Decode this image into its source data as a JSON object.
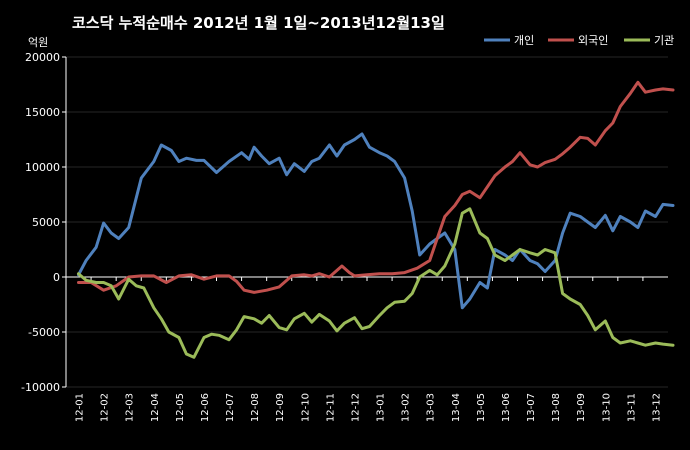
{
  "chart_data": {
    "type": "line",
    "title": "코스닥 누적순매수 2012년 1월 1일~2013년12월13일",
    "ylabel": "억원",
    "ylim": [
      -10000,
      20000
    ],
    "yticks": [
      20000,
      15000,
      10000,
      5000,
      0,
      -5000,
      -10000
    ],
    "ytick_labels": [
      "20000",
      "15000",
      "10000",
      "5000",
      "0",
      "-5000",
      "-10000"
    ],
    "categories": [
      "12-01",
      "12-02",
      "12-03",
      "12-04",
      "12-05",
      "12-06",
      "12-07",
      "12-08",
      "12-09",
      "12-10",
      "12-11",
      "12-12",
      "13-01",
      "13-02",
      "13-03",
      "13-04",
      "13-05",
      "13-06",
      "13-07",
      "13-08",
      "13-09",
      "13-10",
      "13-11",
      "13-12"
    ],
    "grid": true,
    "legend_position": "top-right",
    "series": [
      {
        "name": "개인",
        "color": "#4f81bd",
        "x": [
          0,
          0.3,
          0.7,
          1.0,
          1.3,
          1.6,
          2.0,
          2.5,
          3.0,
          3.3,
          3.7,
          4.0,
          4.3,
          4.7,
          5.0,
          5.5,
          6.0,
          6.5,
          6.8,
          7.0,
          7.3,
          7.6,
          8.0,
          8.3,
          8.6,
          9.0,
          9.3,
          9.6,
          10.0,
          10.3,
          10.6,
          11.0,
          11.3,
          11.6,
          12.0,
          12.3,
          12.6,
          13.0,
          13.3,
          13.6,
          14.0,
          14.3,
          14.6,
          15.0,
          15.3,
          15.6,
          16.0,
          16.3,
          16.6,
          17.0,
          17.3,
          17.6,
          18.0,
          18.3,
          18.6,
          19.0,
          19.3,
          19.6,
          20.0,
          20.3,
          20.6,
          21.0,
          21.3,
          21.6,
          22.0,
          22.3,
          22.6,
          23.0,
          23.3,
          23.7
        ],
        "y": [
          200,
          1500,
          2700,
          4900,
          4000,
          3500,
          4500,
          9000,
          10500,
          12000,
          11500,
          10500,
          10800,
          10600,
          10600,
          9500,
          10500,
          11300,
          10700,
          11800,
          11000,
          10300,
          10800,
          9300,
          10300,
          9600,
          10500,
          10800,
          12000,
          11000,
          12000,
          12500,
          13000,
          11800,
          11300,
          11000,
          10500,
          9000,
          6000,
          2000,
          3000,
          3500,
          4000,
          2500,
          -2800,
          -2000,
          -500,
          -1000,
          2500,
          2000,
          1500,
          2500,
          1500,
          1200,
          500,
          1500,
          4000,
          5800,
          5500,
          5000,
          4500,
          5600,
          4200,
          5500,
          5000,
          4500,
          6000,
          5500,
          6600,
          6500
        ]
      },
      {
        "name": "외국인",
        "color": "#c0504d",
        "x": [
          0,
          0.5,
          1.0,
          1.5,
          2.0,
          2.5,
          3.0,
          3.5,
          4.0,
          4.5,
          5.0,
          5.5,
          6.0,
          6.3,
          6.6,
          7.0,
          7.5,
          8.0,
          8.5,
          9.0,
          9.3,
          9.6,
          10.0,
          10.5,
          10.8,
          11.0,
          11.5,
          12.0,
          12.5,
          13.0,
          13.5,
          14.0,
          14.3,
          14.6,
          15.0,
          15.3,
          15.6,
          16.0,
          16.3,
          16.6,
          17.0,
          17.3,
          17.6,
          18.0,
          18.3,
          18.6,
          19.0,
          19.3,
          19.6,
          20.0,
          20.3,
          20.6,
          21.0,
          21.3,
          21.6,
          22.0,
          22.3,
          22.6,
          23.0,
          23.3,
          23.7
        ],
        "y": [
          -500,
          -500,
          -1200,
          -800,
          0,
          100,
          100,
          -500,
          100,
          200,
          -200,
          100,
          100,
          -400,
          -1200,
          -1400,
          -1200,
          -900,
          100,
          200,
          100,
          300,
          0,
          1000,
          400,
          100,
          200,
          300,
          300,
          400,
          800,
          1500,
          3500,
          5500,
          6500,
          7500,
          7800,
          7200,
          8200,
          9200,
          10000,
          10500,
          11300,
          10200,
          10000,
          10400,
          10700,
          11200,
          11800,
          12700,
          12600,
          12000,
          13300,
          14000,
          15500,
          16700,
          17700,
          16800,
          17000,
          17100,
          17000
        ]
      },
      {
        "name": "기관",
        "color": "#9bbb59",
        "x": [
          0,
          0.3,
          0.7,
          1.0,
          1.3,
          1.6,
          2.0,
          2.3,
          2.6,
          3.0,
          3.3,
          3.6,
          4.0,
          4.3,
          4.6,
          5.0,
          5.3,
          5.6,
          6.0,
          6.3,
          6.6,
          7.0,
          7.3,
          7.6,
          8.0,
          8.3,
          8.6,
          9.0,
          9.3,
          9.6,
          10.0,
          10.3,
          10.6,
          11.0,
          11.3,
          11.6,
          12.0,
          12.3,
          12.6,
          13.0,
          13.3,
          13.6,
          14.0,
          14.3,
          14.6,
          15.0,
          15.3,
          15.6,
          16.0,
          16.3,
          16.6,
          17.0,
          17.3,
          17.6,
          18.0,
          18.3,
          18.6,
          19.0,
          19.3,
          19.6,
          20.0,
          20.3,
          20.6,
          21.0,
          21.3,
          21.6,
          22.0,
          22.3,
          22.6,
          23.0,
          23.3,
          23.7
        ],
        "y": [
          300,
          -300,
          -500,
          -500,
          -800,
          -2000,
          -200,
          -800,
          -1000,
          -2800,
          -3800,
          -5000,
          -5500,
          -7000,
          -7300,
          -5500,
          -5200,
          -5300,
          -5700,
          -4800,
          -3600,
          -3800,
          -4200,
          -3500,
          -4600,
          -4800,
          -3800,
          -3300,
          -4100,
          -3400,
          -4000,
          -4900,
          -4200,
          -3700,
          -4700,
          -4500,
          -3500,
          -2800,
          -2300,
          -2200,
          -1500,
          0,
          600,
          200,
          1000,
          3000,
          5800,
          6200,
          4000,
          3500,
          2000,
          1500,
          2000,
          2500,
          2200,
          2000,
          2500,
          2200,
          -1500,
          -2000,
          -2500,
          -3500,
          -4800,
          -4000,
          -5500,
          -6000,
          -5800,
          -6000,
          -6200,
          -6000,
          -6100,
          -6200
        ]
      }
    ]
  }
}
